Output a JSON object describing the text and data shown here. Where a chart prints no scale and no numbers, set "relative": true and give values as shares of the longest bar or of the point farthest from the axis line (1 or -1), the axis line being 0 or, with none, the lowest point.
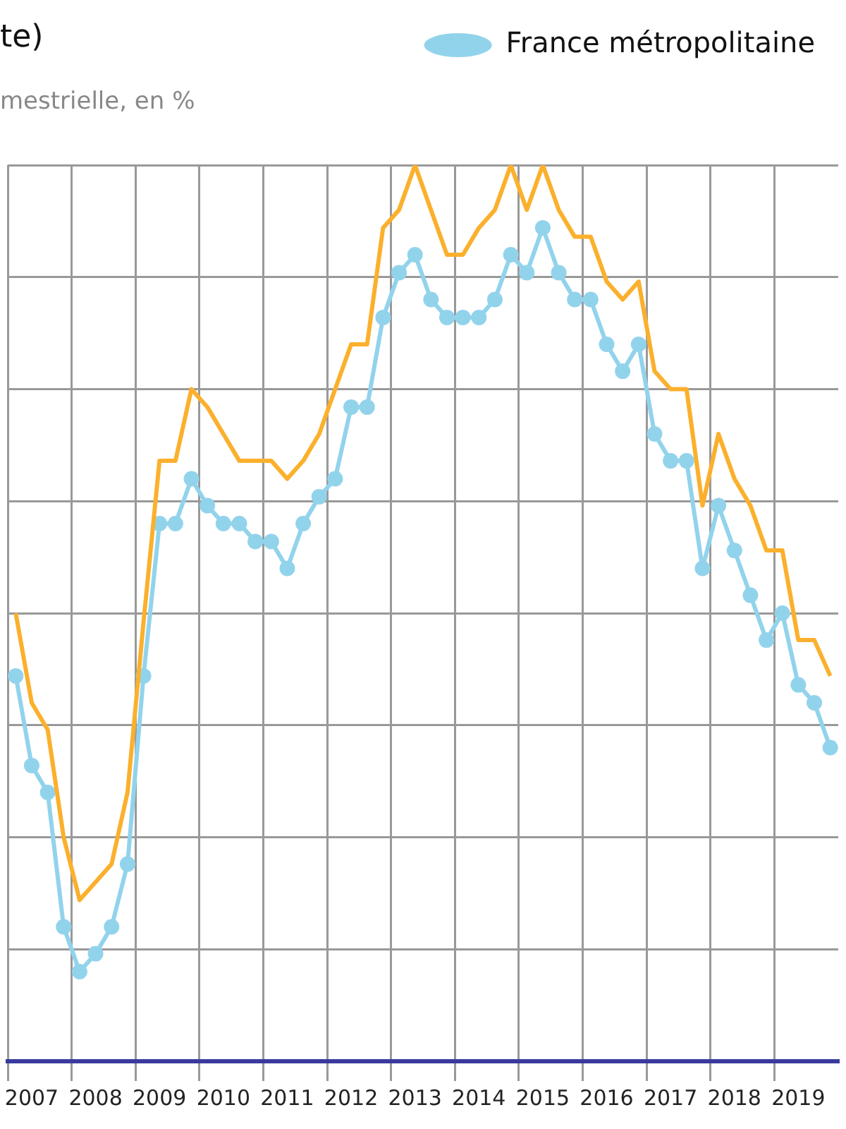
{
  "chart_data": {
    "type": "line",
    "title": "te)",
    "subtitle": "mestrielle, en %",
    "categories": [
      null,
      "2007",
      null,
      null,
      null,
      "2008",
      null,
      null,
      null,
      "2009",
      null,
      null,
      null,
      "2010",
      null,
      null,
      null,
      "2011",
      null,
      null,
      null,
      "2012",
      null,
      null,
      null,
      "2013",
      null,
      null,
      null,
      "2014",
      null,
      null,
      null,
      "2015",
      null,
      null,
      null,
      "2016",
      null,
      null,
      null,
      "2017",
      null,
      null,
      null,
      "2018",
      null,
      null,
      null,
      "2019",
      null,
      null
    ],
    "relative": true,
    "grid": true,
    "legend": "top right",
    "line_style": "solid",
    "series": [
      {
        "color": "#fbb02d",
        "marker": "none",
        "values": [
          0.5,
          0.4,
          0.37,
          0.25,
          0.18,
          0.2,
          0.22,
          0.3,
          0.49,
          0.67,
          0.67,
          0.75,
          0.73,
          0.7,
          0.67,
          0.67,
          0.67,
          0.65,
          0.67,
          0.7,
          0.75,
          0.8,
          0.8,
          0.93,
          0.95,
          1,
          0.95,
          0.9,
          0.9,
          0.93,
          0.95,
          1,
          0.95,
          1,
          0.95,
          0.92,
          0.92,
          0.87,
          0.85,
          0.87,
          0.77,
          0.75,
          0.75,
          0.62,
          0.7,
          0.65,
          0.62,
          0.57,
          0.57,
          0.47,
          0.47,
          0.43
        ]
      },
      {
        "name": "France métropolitaine",
        "color": "#92d3ec",
        "marker": "circle",
        "values": [
          0.43,
          0.33,
          0.3,
          0.15,
          0.1,
          0.12,
          0.15,
          0.22,
          0.43,
          0.6,
          0.6,
          0.65,
          0.62,
          0.6,
          0.6,
          0.58,
          0.58,
          0.55,
          0.6,
          0.63,
          0.65,
          0.73,
          0.73,
          0.83,
          0.88,
          0.9,
          0.85,
          0.83,
          0.83,
          0.83,
          0.85,
          0.9,
          0.88,
          0.93,
          0.88,
          0.85,
          0.85,
          0.8,
          0.77,
          0.8,
          0.7,
          0.67,
          0.67,
          0.55,
          0.62,
          0.57,
          0.52,
          0.47,
          0.5,
          0.42,
          0.4,
          0.35
        ]
      }
    ]
  }
}
